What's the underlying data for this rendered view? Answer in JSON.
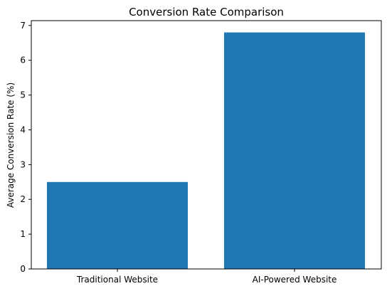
{
  "chart_data": {
    "type": "bar",
    "title": "Conversion Rate Comparison",
    "xlabel": "",
    "ylabel": "Average Conversion Rate (%)",
    "categories": [
      "Traditional Website",
      "AI-Powered Website"
    ],
    "values": [
      2.5,
      6.8
    ],
    "yticks": [
      "0",
      "1",
      "2",
      "3",
      "4",
      "5",
      "6",
      "7"
    ],
    "ylim": [
      0,
      7.14
    ],
    "grid": false,
    "legend": "none",
    "colors": {
      "bar": "#1f77b4",
      "axes": "#000000",
      "background": "#ffffff"
    }
  }
}
